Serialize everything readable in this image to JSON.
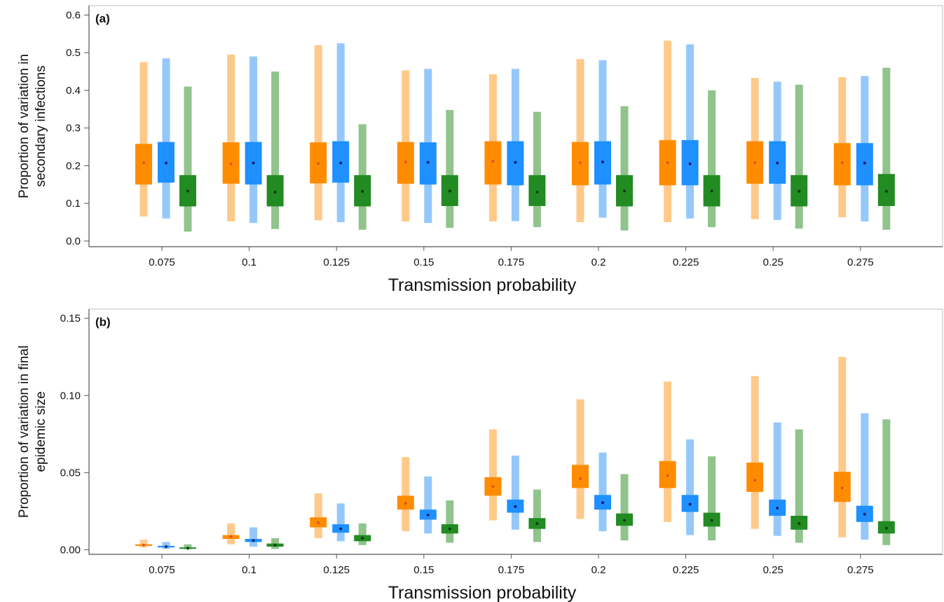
{
  "chart_data": [
    {
      "type": "box-interval",
      "panel_label": "(a)",
      "xlabel": "Transmission probability",
      "ylabel_lines": [
        "Proportion of variation in",
        "secondary infections"
      ],
      "categories": [
        "0.075",
        "0.1",
        "0.125",
        "0.15",
        "0.175",
        "0.2",
        "0.225",
        "0.25",
        "0.275"
      ],
      "yticks": [
        "0.0",
        "0.1",
        "0.2",
        "0.3",
        "0.4",
        "0.5",
        "0.6"
      ],
      "ylim": [
        -0.015,
        0.625
      ],
      "series": [
        {
          "color": "#ff8c00",
          "light": "#ffc98a",
          "dot": "#e0532a",
          "values": [
            {
              "lo": 0.065,
              "q1": 0.15,
              "med": 0.208,
              "q3": 0.258,
              "hi": 0.475
            },
            {
              "lo": 0.052,
              "q1": 0.152,
              "med": 0.205,
              "q3": 0.262,
              "hi": 0.495
            },
            {
              "lo": 0.055,
              "q1": 0.153,
              "med": 0.206,
              "q3": 0.262,
              "hi": 0.52
            },
            {
              "lo": 0.052,
              "q1": 0.152,
              "med": 0.21,
              "q3": 0.263,
              "hi": 0.453
            },
            {
              "lo": 0.052,
              "q1": 0.15,
              "med": 0.212,
              "q3": 0.265,
              "hi": 0.443
            },
            {
              "lo": 0.05,
              "q1": 0.148,
              "med": 0.208,
              "q3": 0.263,
              "hi": 0.483
            },
            {
              "lo": 0.05,
              "q1": 0.148,
              "med": 0.208,
              "q3": 0.268,
              "hi": 0.532
            },
            {
              "lo": 0.058,
              "q1": 0.152,
              "med": 0.208,
              "q3": 0.265,
              "hi": 0.433
            },
            {
              "lo": 0.063,
              "q1": 0.148,
              "med": 0.208,
              "q3": 0.26,
              "hi": 0.435
            }
          ]
        },
        {
          "color": "#1e90ff",
          "light": "#94c8fb",
          "dot": "#10206e",
          "values": [
            {
              "lo": 0.06,
              "q1": 0.155,
              "med": 0.207,
              "q3": 0.263,
              "hi": 0.485
            },
            {
              "lo": 0.048,
              "q1": 0.15,
              "med": 0.207,
              "q3": 0.263,
              "hi": 0.49
            },
            {
              "lo": 0.05,
              "q1": 0.155,
              "med": 0.207,
              "q3": 0.265,
              "hi": 0.525
            },
            {
              "lo": 0.048,
              "q1": 0.15,
              "med": 0.209,
              "q3": 0.262,
              "hi": 0.457
            },
            {
              "lo": 0.053,
              "q1": 0.148,
              "med": 0.209,
              "q3": 0.265,
              "hi": 0.457
            },
            {
              "lo": 0.062,
              "q1": 0.15,
              "med": 0.21,
              "q3": 0.265,
              "hi": 0.48
            },
            {
              "lo": 0.06,
              "q1": 0.148,
              "med": 0.205,
              "q3": 0.268,
              "hi": 0.522
            },
            {
              "lo": 0.056,
              "q1": 0.152,
              "med": 0.207,
              "q3": 0.265,
              "hi": 0.423
            },
            {
              "lo": 0.052,
              "q1": 0.148,
              "med": 0.207,
              "q3": 0.26,
              "hi": 0.438
            }
          ]
        },
        {
          "color": "#228b22",
          "light": "#90c48c",
          "dot": "#0d3b0d",
          "values": [
            {
              "lo": 0.025,
              "q1": 0.092,
              "med": 0.133,
              "q3": 0.175,
              "hi": 0.41
            },
            {
              "lo": 0.032,
              "q1": 0.092,
              "med": 0.13,
              "q3": 0.175,
              "hi": 0.45
            },
            {
              "lo": 0.03,
              "q1": 0.092,
              "med": 0.132,
              "q3": 0.175,
              "hi": 0.31
            },
            {
              "lo": 0.035,
              "q1": 0.093,
              "med": 0.133,
              "q3": 0.175,
              "hi": 0.348
            },
            {
              "lo": 0.037,
              "q1": 0.093,
              "med": 0.13,
              "q3": 0.175,
              "hi": 0.343
            },
            {
              "lo": 0.028,
              "q1": 0.092,
              "med": 0.133,
              "q3": 0.175,
              "hi": 0.358
            },
            {
              "lo": 0.037,
              "q1": 0.092,
              "med": 0.133,
              "q3": 0.175,
              "hi": 0.4
            },
            {
              "lo": 0.033,
              "q1": 0.092,
              "med": 0.132,
              "q3": 0.175,
              "hi": 0.415
            },
            {
              "lo": 0.03,
              "q1": 0.093,
              "med": 0.132,
              "q3": 0.178,
              "hi": 0.46
            }
          ]
        }
      ]
    },
    {
      "type": "box-interval",
      "panel_label": "(b)",
      "xlabel": "Transmission probability",
      "ylabel_lines": [
        "Proportion of variation in final",
        "epidemic size"
      ],
      "categories": [
        "0.075",
        "0.1",
        "0.125",
        "0.15",
        "0.175",
        "0.2",
        "0.225",
        "0.25",
        "0.275"
      ],
      "yticks": [
        "0.00",
        "0.05",
        "0.10",
        "0.15"
      ],
      "ylim": [
        -0.003,
        0.156
      ],
      "series": [
        {
          "color": "#ff8c00",
          "light": "#ffc98a",
          "dot": "#e0532a",
          "values": [
            {
              "lo": 0.0015,
              "q1": 0.0025,
              "med": 0.003,
              "q3": 0.0035,
              "hi": 0.0065
            },
            {
              "lo": 0.0035,
              "q1": 0.007,
              "med": 0.0085,
              "q3": 0.0095,
              "hi": 0.017
            },
            {
              "lo": 0.0075,
              "q1": 0.0145,
              "med": 0.0175,
              "q3": 0.021,
              "hi": 0.0365
            },
            {
              "lo": 0.012,
              "q1": 0.026,
              "med": 0.03,
              "q3": 0.035,
              "hi": 0.06
            },
            {
              "lo": 0.019,
              "q1": 0.035,
              "med": 0.041,
              "q3": 0.047,
              "hi": 0.078
            },
            {
              "lo": 0.02,
              "q1": 0.04,
              "med": 0.046,
              "q3": 0.055,
              "hi": 0.0975
            },
            {
              "lo": 0.018,
              "q1": 0.04,
              "med": 0.048,
              "q3": 0.0575,
              "hi": 0.109
            },
            {
              "lo": 0.0135,
              "q1": 0.0375,
              "med": 0.045,
              "q3": 0.0565,
              "hi": 0.1125
            },
            {
              "lo": 0.008,
              "q1": 0.031,
              "med": 0.04,
              "q3": 0.0505,
              "hi": 0.125
            }
          ]
        },
        {
          "color": "#1e90ff",
          "light": "#94c8fb",
          "dot": "#10206e",
          "values": [
            {
              "lo": 0.0005,
              "q1": 0.0015,
              "med": 0.002,
              "q3": 0.0025,
              "hi": 0.005
            },
            {
              "lo": 0.002,
              "q1": 0.005,
              "med": 0.006,
              "q3": 0.007,
              "hi": 0.0145
            },
            {
              "lo": 0.0055,
              "q1": 0.011,
              "med": 0.0135,
              "q3": 0.0165,
              "hi": 0.03
            },
            {
              "lo": 0.0105,
              "q1": 0.0195,
              "med": 0.0225,
              "q3": 0.026,
              "hi": 0.0475
            },
            {
              "lo": 0.013,
              "q1": 0.024,
              "med": 0.028,
              "q3": 0.0325,
              "hi": 0.061
            },
            {
              "lo": 0.012,
              "q1": 0.026,
              "med": 0.0305,
              "q3": 0.0355,
              "hi": 0.063
            },
            {
              "lo": 0.0095,
              "q1": 0.0245,
              "med": 0.0295,
              "q3": 0.0355,
              "hi": 0.0715
            },
            {
              "lo": 0.009,
              "q1": 0.022,
              "med": 0.027,
              "q3": 0.0325,
              "hi": 0.0825
            },
            {
              "lo": 0.0065,
              "q1": 0.018,
              "med": 0.023,
              "q3": 0.0285,
              "hi": 0.0885
            }
          ]
        },
        {
          "color": "#228b22",
          "light": "#90c48c",
          "dot": "#0d3b0d",
          "values": [
            {
              "lo": 0.0003,
              "q1": 0.0008,
              "med": 0.001,
              "q3": 0.0015,
              "hi": 0.0035
            },
            {
              "lo": 0.0005,
              "q1": 0.002,
              "med": 0.003,
              "q3": 0.004,
              "hi": 0.0075
            },
            {
              "lo": 0.003,
              "q1": 0.0055,
              "med": 0.0075,
              "q3": 0.0095,
              "hi": 0.017
            },
            {
              "lo": 0.0045,
              "q1": 0.0105,
              "med": 0.0135,
              "q3": 0.0165,
              "hi": 0.032
            },
            {
              "lo": 0.005,
              "q1": 0.0135,
              "med": 0.017,
              "q3": 0.0205,
              "hi": 0.039
            },
            {
              "lo": 0.006,
              "q1": 0.0155,
              "med": 0.019,
              "q3": 0.0235,
              "hi": 0.049
            },
            {
              "lo": 0.006,
              "q1": 0.015,
              "med": 0.019,
              "q3": 0.024,
              "hi": 0.0605
            },
            {
              "lo": 0.0045,
              "q1": 0.013,
              "med": 0.017,
              "q3": 0.022,
              "hi": 0.078
            },
            {
              "lo": 0.003,
              "q1": 0.0105,
              "med": 0.014,
              "q3": 0.0185,
              "hi": 0.0845
            }
          ]
        }
      ]
    }
  ]
}
